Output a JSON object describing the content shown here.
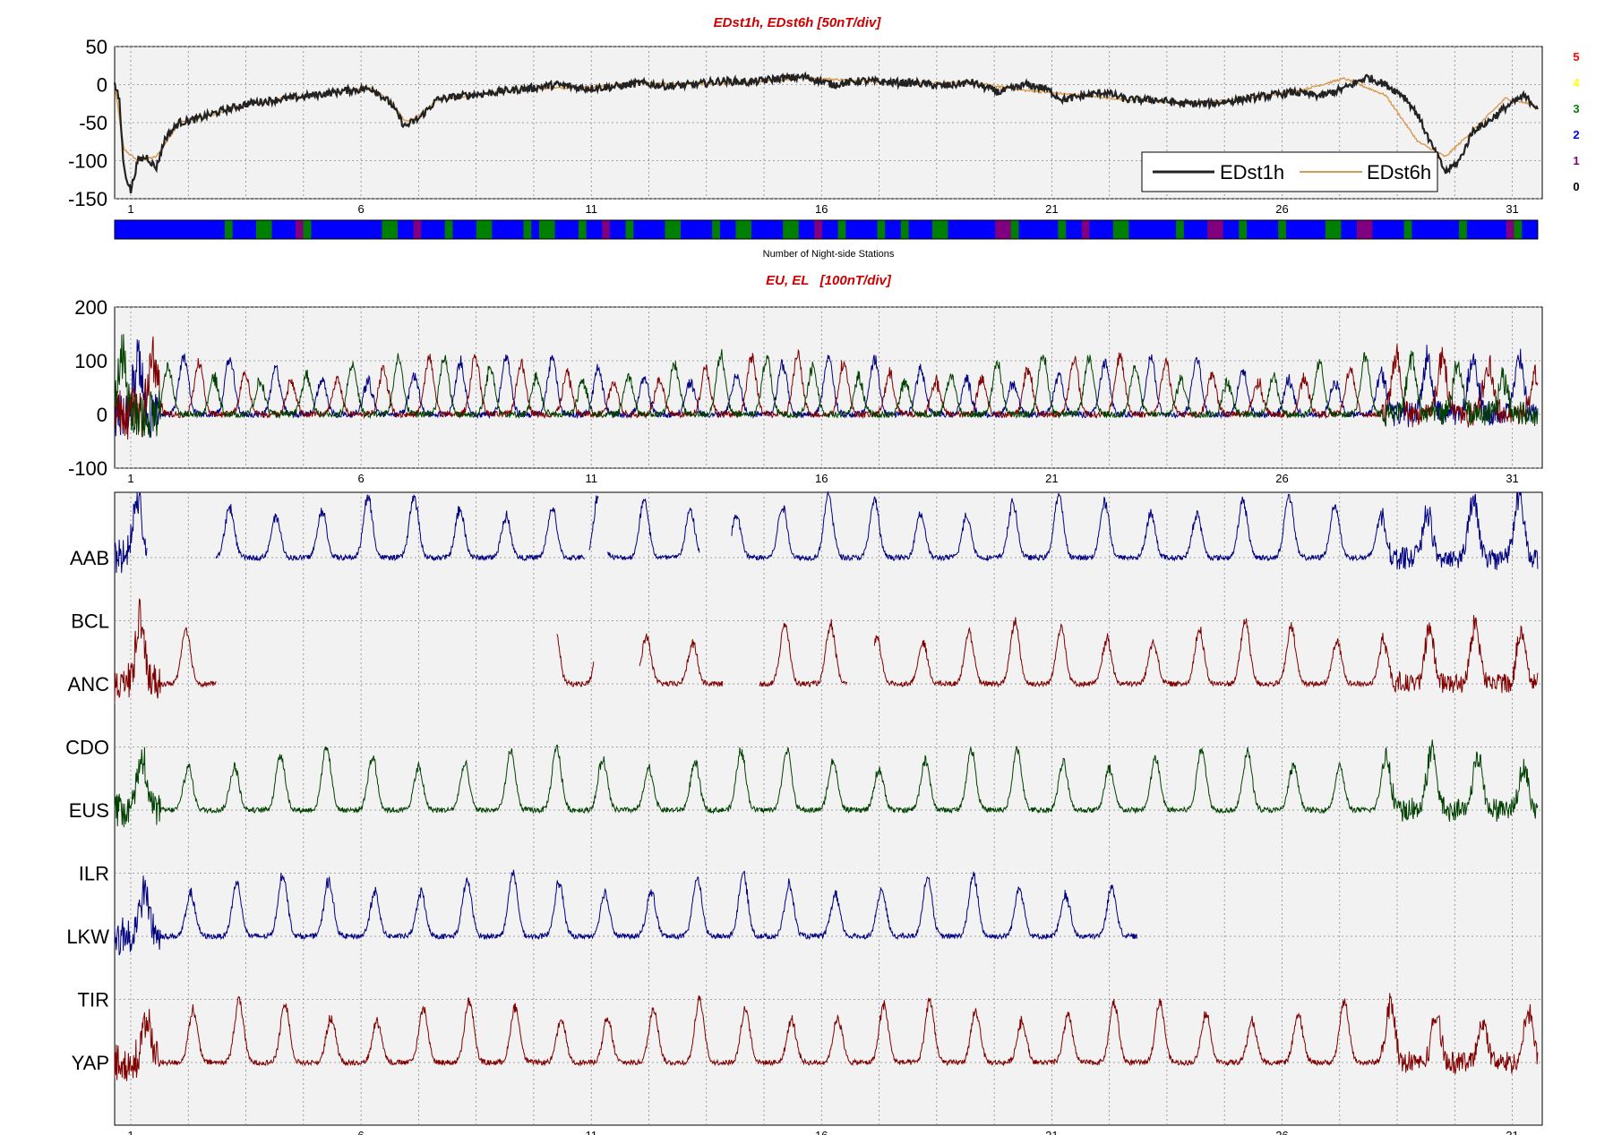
{
  "chart_data": [
    {
      "type": "line",
      "title": "EDst1h, EDst6h [50nT/div]",
      "xlabel": "",
      "ylabel": "",
      "xlim": [
        0,
        31
      ],
      "ylim": [
        -150,
        50
      ],
      "x_ticks": [
        "1",
        "6",
        "11",
        "16",
        "21",
        "26",
        "31"
      ],
      "y_ticks": [
        "50",
        "0",
        "-50",
        "-100",
        "-150"
      ],
      "grid": true,
      "legend_position": "bottom-right",
      "series": [
        {
          "name": "EDst1h",
          "color": "#222222",
          "x": [
            0.0,
            0.1,
            0.2,
            0.35,
            0.5,
            0.7,
            0.9,
            1.1,
            1.4,
            1.8,
            2.3,
            2.9,
            3.5,
            4.2,
            5.0,
            5.6,
            6.0,
            6.3,
            6.6,
            7.0,
            7.5,
            8.0,
            8.5,
            9.0,
            9.6,
            10.2,
            10.8,
            11.4,
            12.0,
            12.6,
            13.2,
            13.8,
            14.4,
            15.0,
            15.6,
            16.2,
            16.8,
            17.4,
            18.0,
            18.6,
            19.2,
            19.8,
            20.2,
            20.6,
            21.0,
            21.5,
            22.0,
            22.6,
            23.2,
            23.8,
            24.4,
            25.0,
            25.6,
            26.2,
            26.7,
            27.2,
            27.6,
            28.0,
            28.3,
            28.6,
            28.9,
            29.2,
            29.5,
            29.8,
            30.2,
            30.6,
            30.9
          ],
          "values": [
            0,
            -20,
            -110,
            -140,
            -100,
            -95,
            -110,
            -70,
            -50,
            -45,
            -35,
            -25,
            -20,
            -15,
            -8,
            -5,
            -25,
            -55,
            -45,
            -20,
            -15,
            -12,
            -8,
            -5,
            0,
            -5,
            -3,
            2,
            -2,
            0,
            5,
            3,
            8,
            10,
            0,
            5,
            3,
            2,
            -2,
            3,
            -10,
            0,
            -5,
            -20,
            -15,
            -10,
            -20,
            -20,
            -25,
            -25,
            -20,
            -15,
            -10,
            -15,
            -5,
            10,
            0,
            -15,
            -40,
            -80,
            -115,
            -100,
            -60,
            -50,
            -30,
            -15,
            -30
          ]
        },
        {
          "name": "EDst6h",
          "color": "#d89a50",
          "x": [
            0.0,
            0.2,
            0.5,
            0.9,
            1.4,
            2.0,
            2.9,
            3.5,
            4.2,
            5.0,
            5.6,
            6.0,
            6.3,
            6.6,
            7.0,
            8.0,
            9.0,
            10.2,
            11.4,
            12.6,
            13.8,
            15.0,
            16.2,
            17.4,
            18.6,
            19.8,
            21.0,
            22.0,
            23.2,
            24.4,
            25.6,
            26.7,
            27.6,
            28.3,
            28.9,
            29.5,
            30.2,
            30.9
          ],
          "values": [
            0,
            -85,
            -100,
            -95,
            -50,
            -42,
            -25,
            -20,
            -15,
            -8,
            -5,
            -22,
            -48,
            -42,
            -20,
            -12,
            -5,
            -4,
            2,
            0,
            3,
            9,
            5,
            2,
            3,
            -8,
            -14,
            -20,
            -24,
            -20,
            -10,
            8,
            -14,
            -75,
            -95,
            -60,
            -18,
            -28
          ]
        }
      ]
    },
    {
      "type": "heatmap",
      "xlabel": "Number of Night-side Stations",
      "colorbar_labels": [
        "5",
        "4",
        "3",
        "2",
        "1",
        "0"
      ],
      "colorbar_colors": [
        "#ff0000",
        "#ffff00",
        "#008000",
        "#0000ff",
        "#800080",
        "#000000"
      ],
      "values": [
        2,
        2,
        2,
        2,
        2,
        2,
        2,
        2,
        2,
        2,
        2,
        2,
        2,
        2,
        3,
        2,
        2,
        2,
        3,
        3,
        2,
        2,
        2,
        1,
        3,
        2,
        2,
        2,
        2,
        2,
        2,
        2,
        2,
        2,
        3,
        3,
        2,
        2,
        1,
        2,
        2,
        2,
        3,
        2,
        2,
        2,
        3,
        3,
        2,
        2,
        2,
        2,
        3,
        2,
        3,
        3,
        2,
        2,
        2,
        3,
        2,
        2,
        1,
        2,
        2,
        3,
        2,
        2,
        2,
        2,
        3,
        3,
        2,
        2,
        2,
        2,
        3,
        2,
        2,
        3,
        3,
        2,
        2,
        2,
        2,
        3,
        3,
        2,
        2,
        1,
        2,
        2,
        3,
        2,
        2,
        2,
        2,
        3,
        2,
        2,
        3,
        2,
        2,
        2,
        3,
        3,
        2,
        2,
        2,
        2,
        2,
        2,
        1,
        1,
        3,
        2,
        2,
        2,
        2,
        2,
        3,
        2,
        2,
        1,
        2,
        2,
        2,
        3,
        3,
        2,
        2,
        2,
        2,
        2,
        2,
        3,
        2,
        2,
        2,
        1,
        1,
        2,
        2,
        3,
        2,
        2,
        2,
        2,
        3,
        2,
        2,
        2,
        2,
        2,
        3,
        3,
        2,
        2,
        1,
        1,
        2,
        2,
        2,
        2,
        3,
        2,
        2,
        2,
        2,
        2,
        2,
        3,
        2,
        2,
        2,
        2,
        2,
        1,
        3,
        2,
        2
      ]
    },
    {
      "type": "line",
      "title": "EU, EL   [100nT/div]",
      "xlim": [
        0,
        31
      ],
      "ylim": [
        -100,
        200
      ],
      "x_ticks": [
        "1",
        "6",
        "11",
        "16",
        "21",
        "26",
        "31"
      ],
      "y_ticks": [
        "200",
        "100",
        "0",
        "-100"
      ],
      "grid": true,
      "series_colors": [
        "#000080",
        "#800000",
        "#004000"
      ]
    },
    {
      "type": "line",
      "title": "",
      "xlim": [
        0,
        31
      ],
      "x_ticks": [
        "1",
        "6",
        "11",
        "16",
        "21",
        "26",
        "31"
      ],
      "grid": true,
      "y_ticks": [
        "AAB",
        "BCL",
        "ANC",
        "CDO",
        "EUS",
        "ILR",
        "LKW",
        "TIR",
        "YAP"
      ],
      "stations": [
        {
          "name": "AAB",
          "color": "#000080",
          "segments": [
            [
              0.0,
              0.7
            ],
            [
              2.2,
              10.2
            ],
            [
              10.3,
              10.5
            ],
            [
              10.7,
              12.7
            ],
            [
              13.4,
              30.9
            ]
          ]
        },
        {
          "name": "ANC",
          "color": "#800000",
          "segments": [
            [
              0.0,
              2.2
            ],
            [
              9.6,
              10.4
            ],
            [
              11.4,
              13.2
            ],
            [
              14.0,
              15.9
            ],
            [
              16.5,
              30.9
            ]
          ]
        },
        {
          "name": "EUS",
          "color": "#004000",
          "segments": [
            [
              0.0,
              30.9
            ]
          ]
        },
        {
          "name": "LKW",
          "color": "#000080",
          "segments": [
            [
              0.0,
              22.2
            ]
          ]
        },
        {
          "name": "YAP",
          "color": "#800000",
          "segments": [
            [
              0.0,
              30.9
            ]
          ]
        }
      ]
    }
  ]
}
